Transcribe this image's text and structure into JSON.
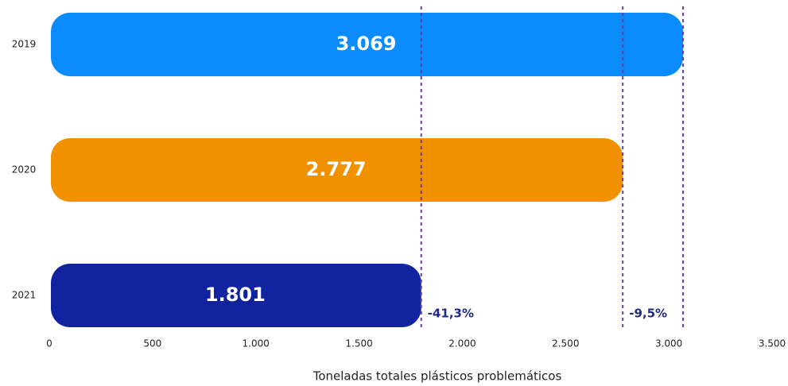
{
  "chart_data": {
    "type": "bar",
    "orientation": "horizontal",
    "x_label": "Toneladas totales plásticos problemáticos",
    "categories": [
      "2019",
      "2020",
      "2021"
    ],
    "values": [
      3069,
      2777,
      1801
    ],
    "value_labels": [
      "3.069",
      "2.777",
      "1.801"
    ],
    "colors": [
      "#0a8cff",
      "#f29100",
      "#1223a0"
    ],
    "xlim": [
      0,
      3500
    ],
    "xticks": [
      0,
      500,
      {
        "value": 1000,
        "label": "1.000"
      },
      {
        "value": 1500,
        "label": "1.500"
      },
      {
        "value": 2000,
        "label": "2.000"
      },
      {
        "value": 2500,
        "label": "2.500"
      },
      {
        "value": 3000,
        "label": "3.000"
      },
      {
        "value": 3500,
        "label": "3.500"
      }
    ],
    "annotations": [
      "-41,3%",
      "-9,5%"
    ],
    "reference_line_color": "#6a3d9a"
  }
}
